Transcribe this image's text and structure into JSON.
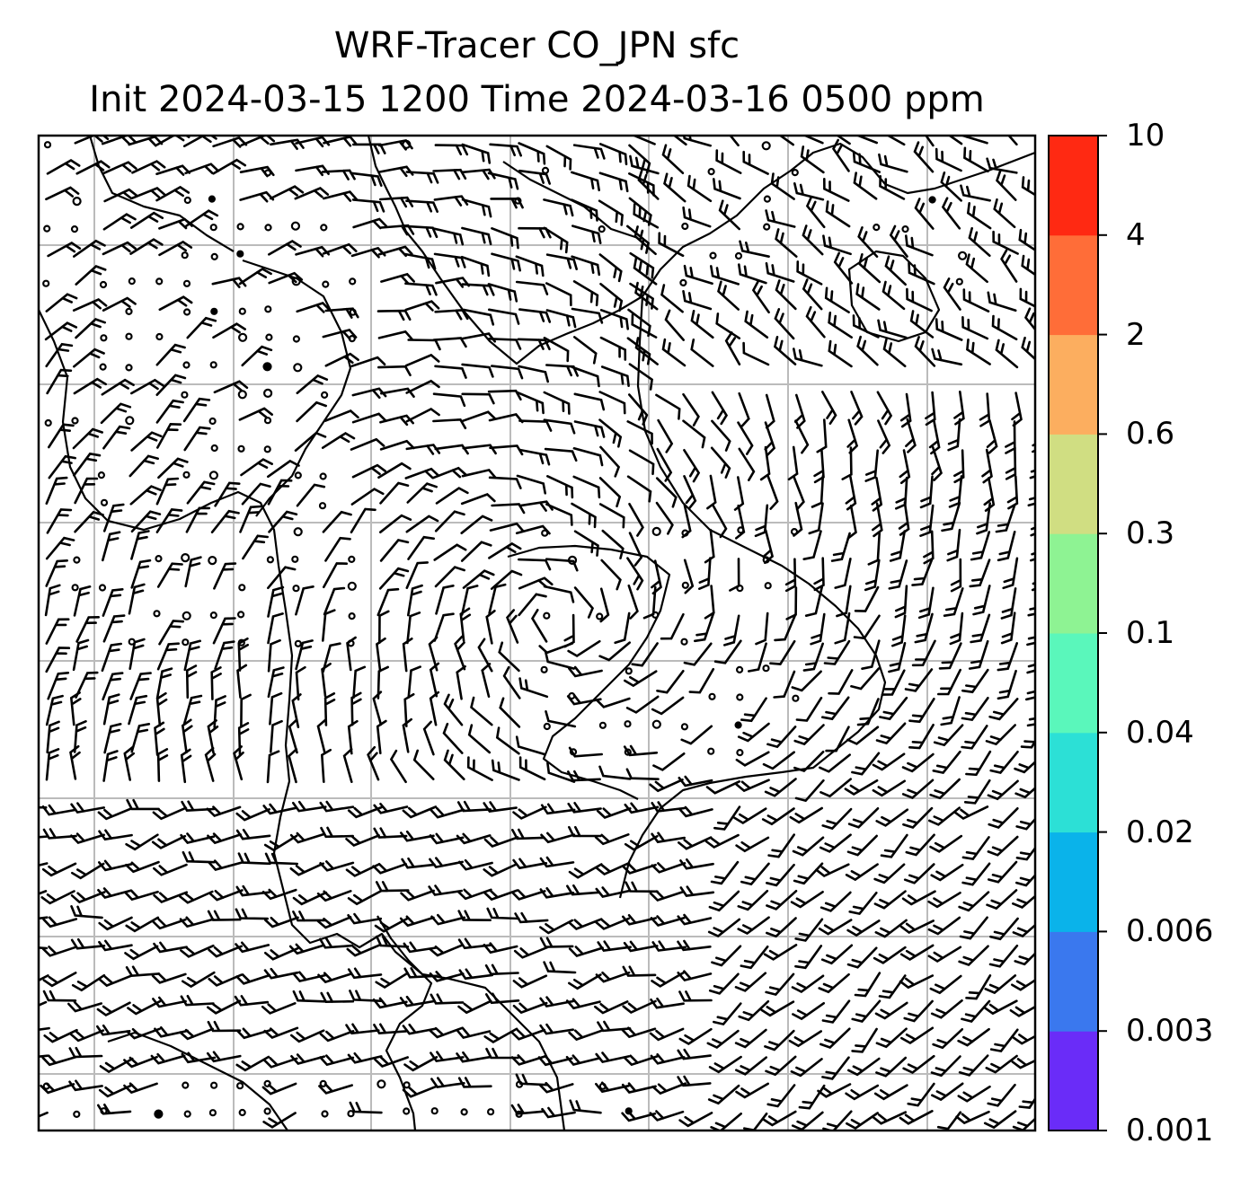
{
  "title": {
    "line1": "WRF-Tracer CO_JPN sfc",
    "line2": "Init 2024-03-15 1200 Time 2024-03-16 0500 ppm"
  },
  "colorbar": {
    "tick_labels": [
      "0.001",
      "0.003",
      "0.006",
      "0.02",
      "0.04",
      "0.1",
      "0.3",
      "0.6",
      "2",
      "4",
      "10"
    ],
    "colors": [
      "#6a2cf8",
      "#3a78ee",
      "#0ab3ea",
      "#2ce0d6",
      "#5af7bb",
      "#8ef393",
      "#d0de82",
      "#fcae5f",
      "#ff6d38",
      "#ff2912"
    ]
  },
  "map": {
    "grid_color": "#bbbbbb",
    "coastline_color": "#000000",
    "wind_barb_color": "#000000"
  }
}
